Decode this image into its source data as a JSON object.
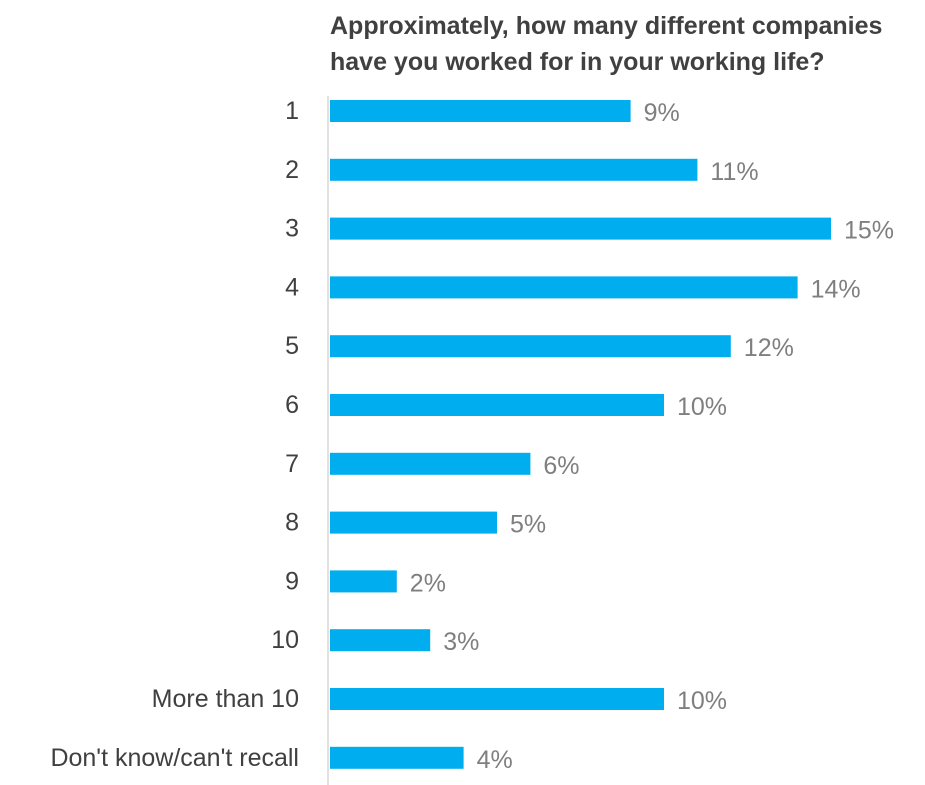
{
  "chart_data": {
    "type": "bar",
    "orientation": "horizontal",
    "title": [
      "Approximately, how many different companies",
      "have you worked for in your working life?"
    ],
    "categories": [
      "1",
      "2",
      "3",
      "4",
      "5",
      "6",
      "7",
      "8",
      "9",
      "10",
      "More than 10",
      "Don't know/can't recall"
    ],
    "values": [
      9,
      11,
      15,
      14,
      12,
      10,
      6,
      5,
      2,
      3,
      10,
      4
    ],
    "data_labels": [
      "9%",
      "11%",
      "15%",
      "14%",
      "12%",
      "10%",
      "6%",
      "5%",
      "2%",
      "3%",
      "10%",
      "4%"
    ],
    "value_unit": "%",
    "xlabel": "",
    "ylabel": "",
    "legend": "none",
    "grid": false,
    "bar_color": "#00AEEF",
    "label_color": "#404040",
    "data_label_color": "#7F7F7F",
    "axis_color": "#D9D9D9"
  }
}
